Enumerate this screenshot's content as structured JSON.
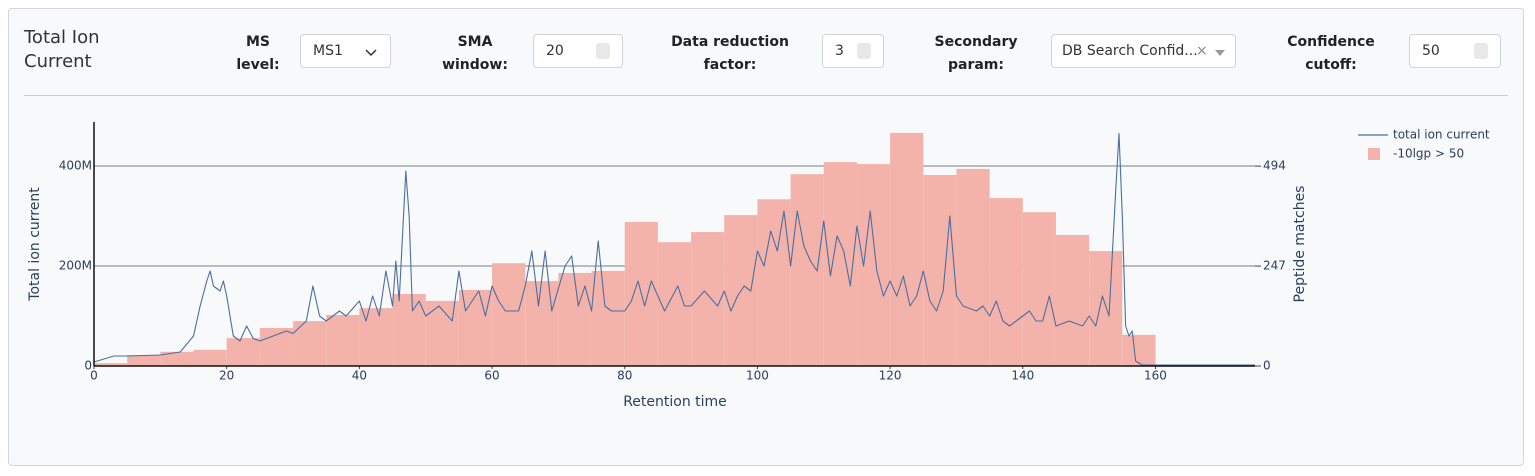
{
  "header": {
    "title": "Total Ion Current"
  },
  "controls": [
    {
      "label": "MS level:",
      "value": "MS1"
    },
    {
      "label": "SMA window:",
      "value": "20"
    },
    {
      "label": "Data reduction factor:",
      "value": "3"
    },
    {
      "label": "Secondary param:",
      "value": "DB Search Confid..."
    },
    {
      "label": "Confidence cutoff:",
      "value": "50"
    }
  ],
  "chart_data": {
    "type": "combo",
    "xlabel": "Retention time",
    "ylabel": "Total ion current",
    "y2label": "Peptide matches",
    "xlim": [
      0,
      175
    ],
    "xticks": [
      0,
      20,
      40,
      60,
      80,
      100,
      120,
      140,
      160
    ],
    "ylim": [
      0,
      488000000.0
    ],
    "yticks": [
      {
        "value": 0,
        "label": "0"
      },
      {
        "value": 200000000.0,
        "label": "200M"
      },
      {
        "value": 400000000.0,
        "label": "400M"
      }
    ],
    "y2lim": [
      0,
      603
    ],
    "y2ticks": [
      0,
      247,
      494
    ],
    "grid": true,
    "legend": "top-right",
    "series": [
      {
        "name": "total ion current",
        "type": "line",
        "color": "#4a6fa0",
        "x": [
          0,
          3,
          5,
          10,
          13,
          15,
          16,
          17,
          17.5,
          18,
          19,
          19.5,
          20,
          21,
          22,
          23,
          24,
          25,
          27,
          29,
          30,
          32,
          33,
          34,
          35,
          37,
          38,
          40,
          41,
          42,
          43,
          44,
          45,
          45.5,
          46,
          47,
          47.5,
          48,
          49,
          50,
          52,
          54,
          55,
          56,
          57,
          58,
          59,
          60,
          61,
          62,
          64,
          65,
          66,
          67,
          68,
          69,
          71,
          72,
          73,
          74,
          75,
          76,
          77,
          78,
          80,
          81,
          82,
          83,
          84,
          85,
          86,
          88,
          89,
          90,
          92,
          94,
          95,
          96,
          97,
          98,
          99,
          100,
          101,
          102,
          103,
          104,
          105,
          106,
          107,
          108,
          109,
          110,
          111,
          112,
          113,
          114,
          115,
          116,
          117,
          118,
          119,
          120,
          121,
          122,
          123,
          124,
          125,
          126,
          127,
          128,
          129,
          130,
          131,
          133,
          134,
          135,
          136,
          137,
          138,
          140,
          141,
          142,
          143,
          144,
          145,
          147,
          149,
          150,
          151,
          152,
          153,
          154,
          154.5,
          155,
          155.5,
          156,
          156.5,
          157,
          158,
          160,
          175
        ],
        "values": [
          8000000.0,
          20000000.0,
          20000000.0,
          22000000.0,
          28000000.0,
          60000000.0,
          120000000.0,
          170000000.0,
          190000000.0,
          160000000.0,
          150000000.0,
          170000000.0,
          140000000.0,
          60000000.0,
          50000000.0,
          80000000.0,
          55000000.0,
          50000000.0,
          60000000.0,
          70000000.0,
          65000000.0,
          90000000.0,
          160000000.0,
          100000000.0,
          90000000.0,
          110000000.0,
          100000000.0,
          130000000.0,
          90000000.0,
          140000000.0,
          100000000.0,
          190000000.0,
          120000000.0,
          210000000.0,
          130000000.0,
          390000000.0,
          300000000.0,
          110000000.0,
          130000000.0,
          100000000.0,
          120000000.0,
          90000000.0,
          190000000.0,
          110000000.0,
          130000000.0,
          150000000.0,
          100000000.0,
          160000000.0,
          130000000.0,
          110000000.0,
          110000000.0,
          160000000.0,
          230000000.0,
          120000000.0,
          230000000.0,
          110000000.0,
          200000000.0,
          220000000.0,
          120000000.0,
          160000000.0,
          110000000.0,
          250000000.0,
          120000000.0,
          110000000.0,
          110000000.0,
          130000000.0,
          170000000.0,
          120000000.0,
          170000000.0,
          140000000.0,
          110000000.0,
          160000000.0,
          120000000.0,
          120000000.0,
          150000000.0,
          120000000.0,
          150000000.0,
          110000000.0,
          140000000.0,
          160000000.0,
          150000000.0,
          230000000.0,
          200000000.0,
          270000000.0,
          230000000.0,
          310000000.0,
          200000000.0,
          310000000.0,
          240000000.0,
          210000000.0,
          190000000.0,
          290000000.0,
          180000000.0,
          260000000.0,
          230000000.0,
          160000000.0,
          280000000.0,
          200000000.0,
          310000000.0,
          190000000.0,
          140000000.0,
          170000000.0,
          140000000.0,
          180000000.0,
          120000000.0,
          140000000.0,
          190000000.0,
          130000000.0,
          110000000.0,
          150000000.0,
          300000000.0,
          140000000.0,
          120000000.0,
          110000000.0,
          120000000.0,
          100000000.0,
          130000000.0,
          90000000.0,
          80000000.0,
          100000000.0,
          110000000.0,
          90000000.0,
          90000000.0,
          140000000.0,
          80000000.0,
          90000000.0,
          80000000.0,
          100000000.0,
          80000000.0,
          140000000.0,
          100000000.0,
          350000000.0,
          465000000.0,
          300000000.0,
          80000000.0,
          60000000.0,
          70000000.0,
          10000000.0,
          2000000.0,
          2000000.0,
          2000000.0
        ]
      },
      {
        "name": "-10lgp > 50",
        "type": "bar",
        "axis": "y2",
        "color": "#f4b3aa",
        "bins": [
          0,
          5,
          10,
          15,
          20,
          25,
          30,
          35,
          40,
          45,
          50,
          55,
          60,
          65,
          70,
          75,
          80,
          85,
          90,
          95,
          100,
          105,
          110,
          115,
          120,
          125,
          130,
          135,
          140,
          145,
          150,
          155,
          160
        ],
        "values": [
          7,
          27,
          35,
          40,
          69,
          94,
          111,
          126,
          143,
          178,
          161,
          188,
          254,
          210,
          230,
          235,
          356,
          306,
          331,
          373,
          412,
          474,
          504,
          499,
          576,
          472,
          487,
          415,
          380,
          324,
          284,
          77
        ]
      }
    ]
  }
}
